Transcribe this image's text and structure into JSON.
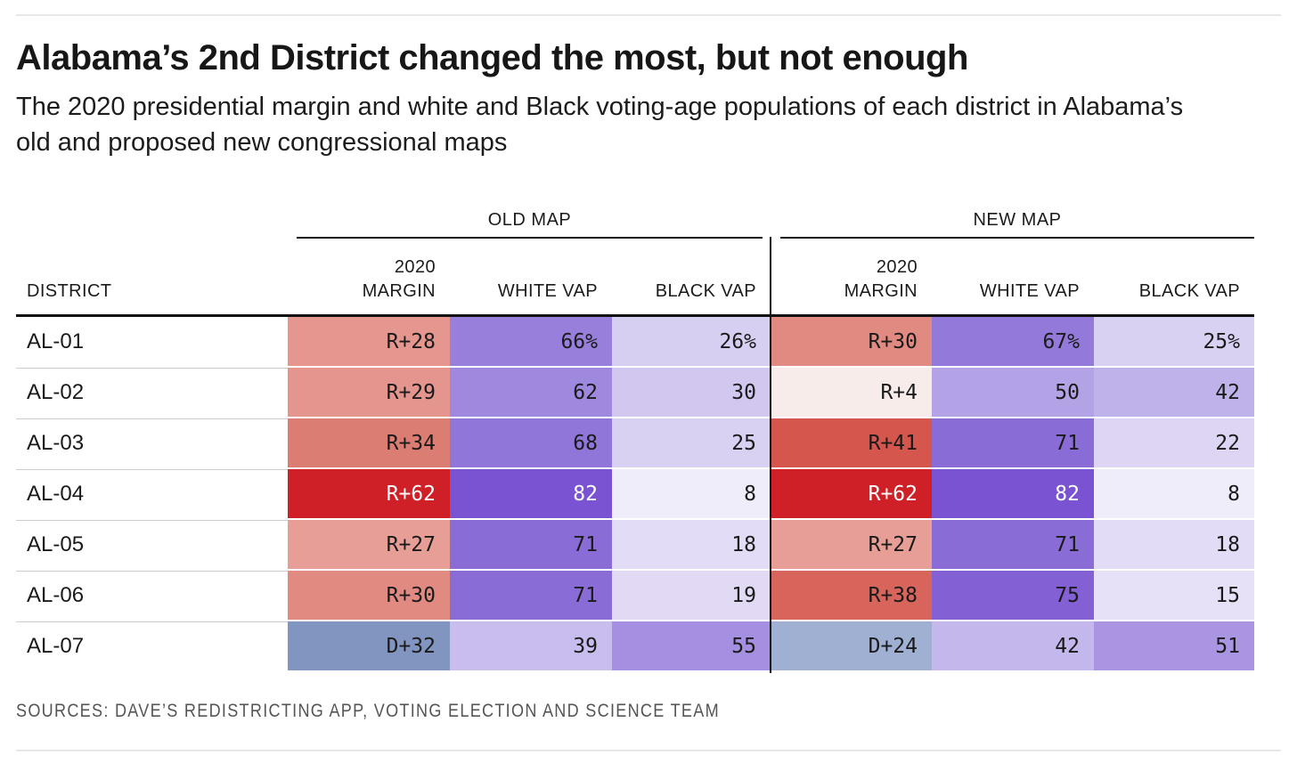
{
  "header": {
    "title": "Alabama’s 2nd District changed the most, but not enough",
    "subtitle": "The 2020 presidential margin and white and Black voting-age populations of each district in Alabama’s old and proposed new congressional maps"
  },
  "table": {
    "group_headers": {
      "old": "OLD MAP",
      "new": "NEW MAP"
    },
    "columns": {
      "district": "DISTRICT",
      "margin": "2020\nMARGIN",
      "white_vap": "WHITE VAP",
      "black_vap": "BLACK VAP"
    },
    "rows": [
      {
        "district": "AL-01",
        "old": {
          "margin": {
            "text": "R+28",
            "bg": "#e5978f",
            "fg": "#1a1a1a"
          },
          "white": {
            "text": "66%",
            "bg": "#987fdc",
            "fg": "#1a1a1a"
          },
          "black": {
            "text": "26%",
            "bg": "#d7cff2",
            "fg": "#1a1a1a"
          }
        },
        "new": {
          "margin": {
            "text": "R+30",
            "bg": "#e08a81",
            "fg": "#1a1a1a"
          },
          "white": {
            "text": "67%",
            "bg": "#937ada",
            "fg": "#1a1a1a"
          },
          "black": {
            "text": "25%",
            "bg": "#d9d1f2",
            "fg": "#1a1a1a"
          }
        }
      },
      {
        "district": "AL-02",
        "old": {
          "margin": {
            "text": "R+29",
            "bg": "#e4958d",
            "fg": "#1a1a1a"
          },
          "white": {
            "text": "62",
            "bg": "#9e89df",
            "fg": "#1a1a1a"
          },
          "black": {
            "text": "30",
            "bg": "#d2c7ef",
            "fg": "#1a1a1a"
          }
        },
        "new": {
          "margin": {
            "text": "R+4",
            "bg": "#f8eceb",
            "fg": "#1a1a1a"
          },
          "white": {
            "text": "50",
            "bg": "#b3a3e6",
            "fg": "#1a1a1a"
          },
          "black": {
            "text": "42",
            "bg": "#bfb1ea",
            "fg": "#1a1a1a"
          }
        }
      },
      {
        "district": "AL-03",
        "old": {
          "margin": {
            "text": "R+34",
            "bg": "#dc7d73",
            "fg": "#1a1a1a"
          },
          "white": {
            "text": "68",
            "bg": "#9176d9",
            "fg": "#1a1a1a"
          },
          "black": {
            "text": "25",
            "bg": "#d9d1f2",
            "fg": "#1a1a1a"
          }
        },
        "new": {
          "margin": {
            "text": "R+41",
            "bg": "#d4564d",
            "fg": "#1a1a1a"
          },
          "white": {
            "text": "71",
            "bg": "#8a6cd7",
            "fg": "#1a1a1a"
          },
          "black": {
            "text": "22",
            "bg": "#ddd5f3",
            "fg": "#1a1a1a"
          }
        }
      },
      {
        "district": "AL-04",
        "old": {
          "margin": {
            "text": "R+62",
            "bg": "#d02027",
            "fg": "#ffffff"
          },
          "white": {
            "text": "82",
            "bg": "#7a53d2",
            "fg": "#ffffff"
          },
          "black": {
            "text": "8",
            "bg": "#f0edfa",
            "fg": "#1a1a1a"
          }
        },
        "new": {
          "margin": {
            "text": "R+62",
            "bg": "#d02027",
            "fg": "#ffffff"
          },
          "white": {
            "text": "82",
            "bg": "#7a53d2",
            "fg": "#ffffff"
          },
          "black": {
            "text": "8",
            "bg": "#f0edfa",
            "fg": "#1a1a1a"
          }
        }
      },
      {
        "district": "AL-05",
        "old": {
          "margin": {
            "text": "R+27",
            "bg": "#e79e97",
            "fg": "#1a1a1a"
          },
          "white": {
            "text": "71",
            "bg": "#8a6cd7",
            "fg": "#1a1a1a"
          },
          "black": {
            "text": "18",
            "bg": "#e3dcf6",
            "fg": "#1a1a1a"
          }
        },
        "new": {
          "margin": {
            "text": "R+27",
            "bg": "#e79e97",
            "fg": "#1a1a1a"
          },
          "white": {
            "text": "71",
            "bg": "#8a6cd7",
            "fg": "#1a1a1a"
          },
          "black": {
            "text": "18",
            "bg": "#e3dcf6",
            "fg": "#1a1a1a"
          }
        }
      },
      {
        "district": "AL-06",
        "old": {
          "margin": {
            "text": "R+30",
            "bg": "#e08a81",
            "fg": "#1a1a1a"
          },
          "white": {
            "text": "71",
            "bg": "#8a6cd7",
            "fg": "#1a1a1a"
          },
          "black": {
            "text": "19",
            "bg": "#e2daf5",
            "fg": "#1a1a1a"
          }
        },
        "new": {
          "margin": {
            "text": "R+38",
            "bg": "#d7655b",
            "fg": "#1a1a1a"
          },
          "white": {
            "text": "75",
            "bg": "#8360d4",
            "fg": "#1a1a1a"
          },
          "black": {
            "text": "15",
            "bg": "#e7e1f7",
            "fg": "#1a1a1a"
          }
        }
      },
      {
        "district": "AL-07",
        "old": {
          "margin": {
            "text": "D+32",
            "bg": "#8295c1",
            "fg": "#1a1a1a"
          },
          "white": {
            "text": "39",
            "bg": "#c8bded",
            "fg": "#1a1a1a"
          },
          "black": {
            "text": "55",
            "bg": "#a48fe0",
            "fg": "#1a1a1a"
          }
        },
        "new": {
          "margin": {
            "text": "D+24",
            "bg": "#9fb0d2",
            "fg": "#1a1a1a"
          },
          "white": {
            "text": "42",
            "bg": "#c4b7ec",
            "fg": "#1a1a1a"
          },
          "black": {
            "text": "51",
            "bg": "#a995e2",
            "fg": "#1a1a1a"
          }
        }
      }
    ]
  },
  "footer": {
    "sources": "SOURCES: DAVE’S REDISTRICTING APP, VOTING ELECTION AND SCIENCE TEAM"
  },
  "colors": {
    "heavy_rule": "#111111",
    "light_rule": "#e7e7e7",
    "text": "#1a1a1a",
    "muted_text": "#555555",
    "republican_max": "#d02027",
    "democrat": "#8295c1",
    "purple_max": "#7a53d2"
  },
  "chart_data": {
    "type": "table",
    "title": "Alabama’s 2nd District changed the most, but not enough",
    "subtitle": "The 2020 presidential margin and white and Black voting-age populations of each district in Alabama’s old and proposed new congressional maps",
    "categories": [
      "AL-01",
      "AL-02",
      "AL-03",
      "AL-04",
      "AL-05",
      "AL-06",
      "AL-07"
    ],
    "margin_sign_convention": "positive = R advantage, negative = D advantage",
    "series": [
      {
        "name": "Old map 2020 margin",
        "labels": [
          "R+28",
          "R+29",
          "R+34",
          "R+62",
          "R+27",
          "R+30",
          "D+32"
        ],
        "values": [
          28,
          29,
          34,
          62,
          27,
          30,
          -32
        ]
      },
      {
        "name": "Old map white VAP %",
        "values": [
          66,
          62,
          68,
          82,
          71,
          71,
          39
        ]
      },
      {
        "name": "Old map Black VAP %",
        "values": [
          26,
          30,
          25,
          8,
          18,
          19,
          55
        ]
      },
      {
        "name": "New map 2020 margin",
        "labels": [
          "R+30",
          "R+4",
          "R+41",
          "R+62",
          "R+27",
          "R+38",
          "D+24"
        ],
        "values": [
          30,
          4,
          41,
          62,
          27,
          38,
          -24
        ]
      },
      {
        "name": "New map white VAP %",
        "values": [
          67,
          50,
          71,
          82,
          71,
          75,
          42
        ]
      },
      {
        "name": "New map Black VAP %",
        "values": [
          25,
          42,
          22,
          8,
          18,
          15,
          51
        ]
      }
    ],
    "sources": "SOURCES: DAVE’S REDISTRICTING APP, VOTING ELECTION AND SCIENCE TEAM"
  }
}
